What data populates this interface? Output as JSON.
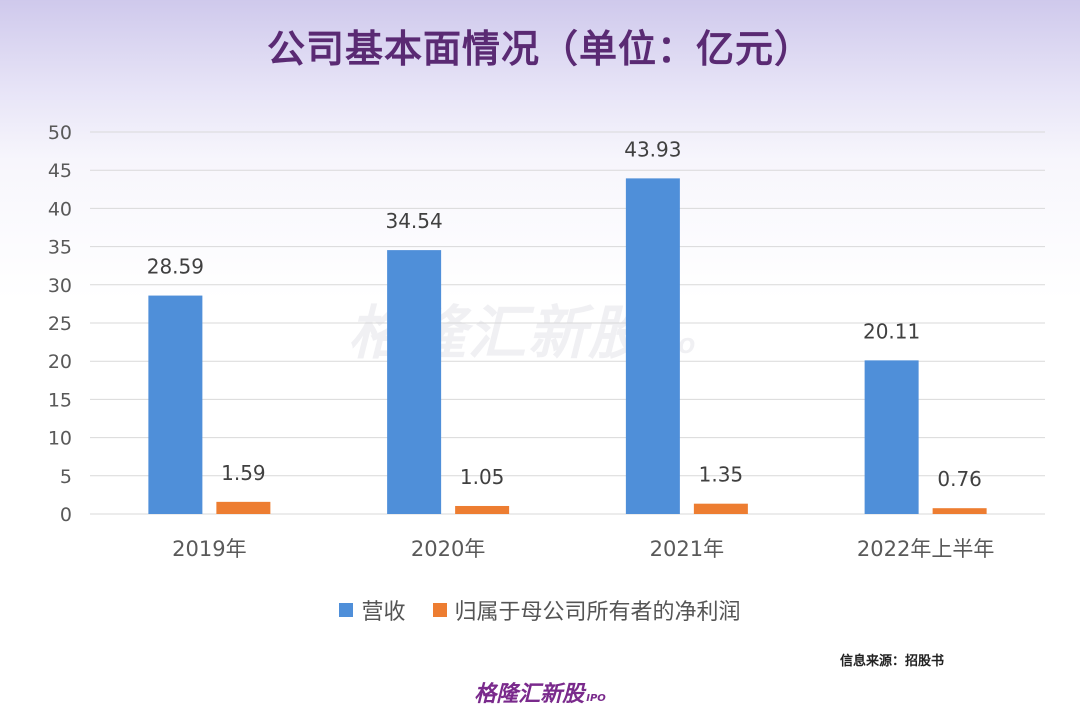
{
  "title": "公司基本面情况（单位：亿元）",
  "source": "信息来源：招股书",
  "brand": {
    "name": "格隆汇新股",
    "suffix": "IPO"
  },
  "colors": {
    "revenue": "#4f8fd9",
    "net_profit": "#ed7d31",
    "title": "#5a2a73"
  },
  "chart_data": {
    "type": "bar",
    "categories": [
      "2019年",
      "2020年",
      "2021年",
      "2022年上半年"
    ],
    "series": [
      {
        "name": "营收",
        "values": [
          28.59,
          34.54,
          43.93,
          20.11
        ]
      },
      {
        "name": "归属于母公司所有者的净利润",
        "values": [
          1.59,
          1.05,
          1.35,
          0.76
        ]
      }
    ],
    "yticks": [
      0,
      5,
      10,
      15,
      20,
      25,
      30,
      35,
      40,
      45,
      50
    ],
    "ylim": [
      0,
      50
    ],
    "grid": true,
    "legend": "bottom"
  }
}
